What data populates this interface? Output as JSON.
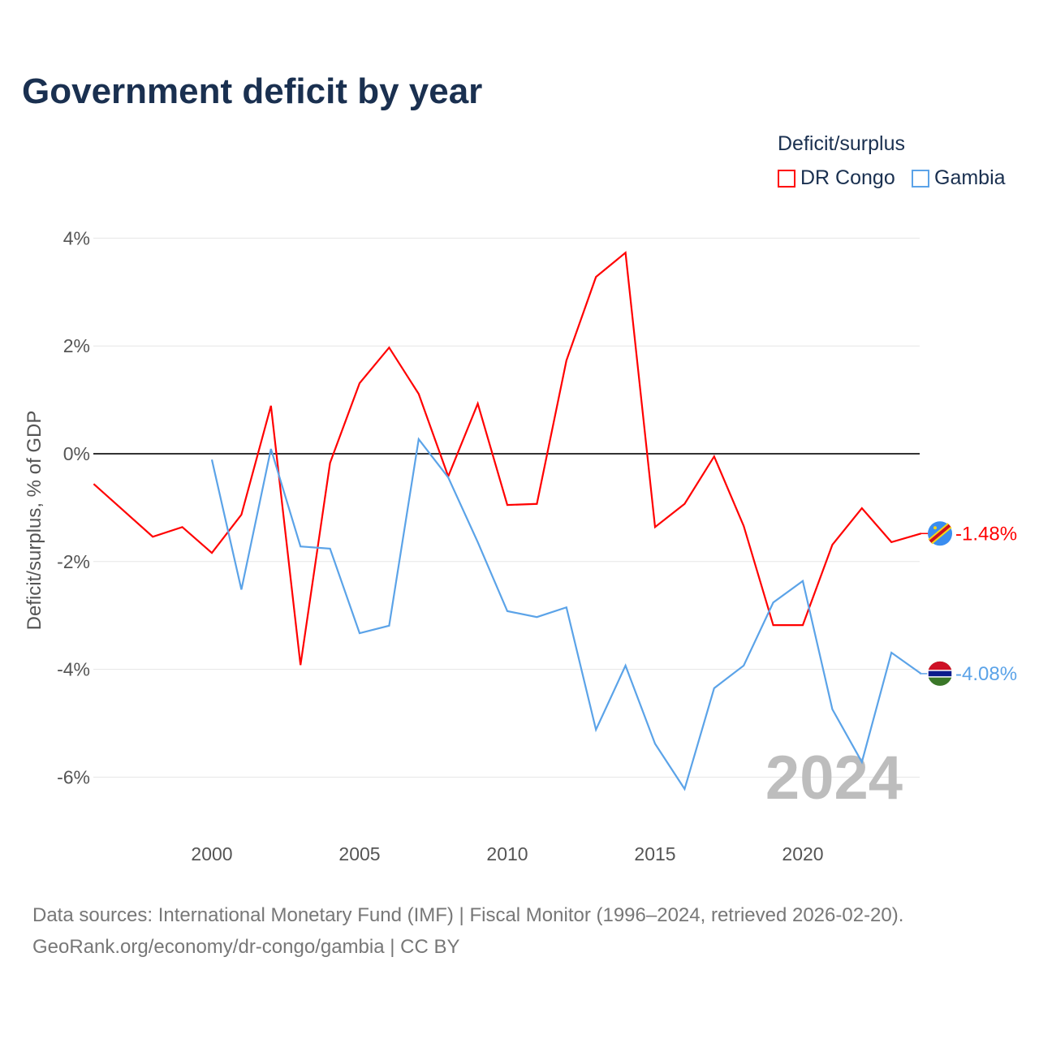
{
  "title": "Government deficit by year",
  "legend": {
    "title": "Deficit/surplus",
    "items": [
      {
        "label": "DR Congo",
        "color": "#ff0000"
      },
      {
        "label": "Gambia",
        "color": "#5ba3e8"
      }
    ]
  },
  "year_label": "2024",
  "source": {
    "line1": "Data sources: International Monetary Fund (IMF) | Fiscal Monitor (1996–2024, retrieved 2026-02-20).",
    "line2": "GeoRank.org/economy/dr-congo/gambia | CC BY"
  },
  "chart_data": {
    "type": "line",
    "title": "Government deficit by year",
    "xlabel": "",
    "ylabel": "Deficit/surplus, % of GDP",
    "xlim": [
      1996,
      2024
    ],
    "ylim": [
      -7,
      4.5
    ],
    "xticks": [
      2000,
      2005,
      2010,
      2015,
      2020
    ],
    "yticks": [
      4,
      2,
      0,
      -2,
      -4,
      -6
    ],
    "ytick_labels": [
      "4%",
      "2%",
      "0%",
      "-2%",
      "-4%",
      "-6%"
    ],
    "grid": true,
    "legend_position": "top-right",
    "series": [
      {
        "name": "DR Congo",
        "color": "#ff0000",
        "end_label": "-1.48%",
        "x": [
          1996,
          1997,
          1998,
          1999,
          2000,
          2001,
          2002,
          2003,
          2004,
          2005,
          2006,
          2007,
          2008,
          2009,
          2010,
          2011,
          2012,
          2013,
          2014,
          2015,
          2016,
          2017,
          2018,
          2019,
          2020,
          2021,
          2022,
          2023,
          2024
        ],
        "y": [
          -0.56,
          -1.05,
          -1.54,
          -1.36,
          -1.84,
          -1.13,
          0.89,
          -3.92,
          -0.17,
          1.31,
          1.97,
          1.11,
          -0.42,
          0.93,
          -0.95,
          -0.93,
          1.73,
          3.28,
          3.73,
          -1.36,
          -0.93,
          -0.05,
          -1.34,
          -3.18,
          -3.18,
          -1.69,
          -1.01,
          -1.64,
          -1.48
        ]
      },
      {
        "name": "Gambia",
        "color": "#5ba3e8",
        "end_label": "-4.08%",
        "x": [
          2000,
          2001,
          2002,
          2003,
          2004,
          2005,
          2006,
          2007,
          2008,
          2009,
          2010,
          2011,
          2012,
          2013,
          2014,
          2015,
          2016,
          2017,
          2018,
          2019,
          2020,
          2021,
          2022,
          2023,
          2024
        ],
        "y": [
          -0.11,
          -2.52,
          0.09,
          -1.72,
          -1.76,
          -3.33,
          -3.19,
          0.27,
          -0.44,
          -1.64,
          -2.92,
          -3.03,
          -2.85,
          -5.12,
          -3.93,
          -5.38,
          -6.22,
          -4.35,
          -3.93,
          -2.76,
          -2.36,
          -4.74,
          -5.72,
          -3.69,
          -4.08
        ]
      }
    ]
  }
}
